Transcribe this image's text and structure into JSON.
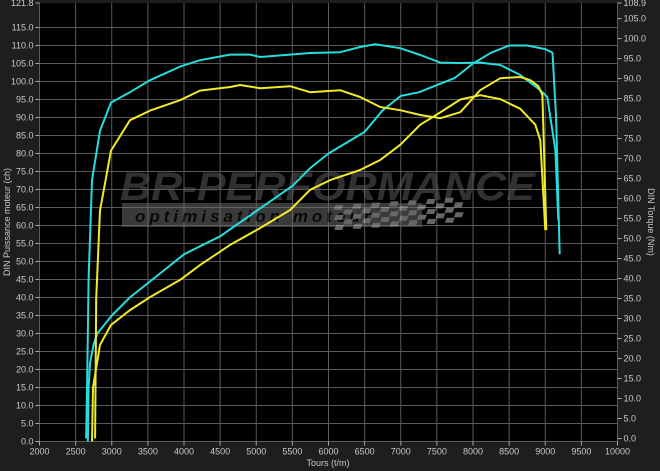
{
  "chart_data": {
    "type": "line",
    "title": "",
    "xlabel": "Tours (t/m)",
    "ylabel_left": "DIN Puissance moteur (ch)",
    "ylabel_right": "DIN Torque (Nm)",
    "xlim": [
      2000,
      10000
    ],
    "ylim_left": [
      0,
      121.8
    ],
    "ylim_right": [
      0,
      108.9
    ],
    "x_ticks": [
      2000,
      2500,
      3000,
      3500,
      4000,
      4500,
      5000,
      5500,
      6000,
      6500,
      7000,
      7500,
      8000,
      8500,
      9000,
      9500,
      10000
    ],
    "y_left_ticks": [
      "0.0",
      "5.0",
      "10.0",
      "15.0",
      "20.0",
      "25.0",
      "30.0",
      "35.0",
      "40.0",
      "45.0",
      "50.0",
      "55.0",
      "60.0",
      "65.0",
      "70.0",
      "75.0",
      "80.0",
      "85.0",
      "90.0",
      "95.0",
      "100.0",
      "105.0",
      "110.0",
      "115.0",
      "121.8"
    ],
    "y_right_ticks": [
      "0.0",
      "5.0",
      "10.0",
      "15.0",
      "20.0",
      "25.0",
      "30.0",
      "35.0",
      "40.0",
      "45.0",
      "50.0",
      "55.0",
      "60.0",
      "65.0",
      "70.0",
      "75.0",
      "80.0",
      "85.0",
      "90.0",
      "95.0",
      "100.0",
      "105.0",
      "108.9"
    ],
    "grid": true,
    "background": "#000000",
    "watermark": {
      "brand": "BR-Performance",
      "tagline": "optimisation moteur"
    },
    "series": [
      {
        "axis": "left",
        "color": "#26dcdc",
        "x": [
          2670,
          2680,
          2700,
          2750,
          2800,
          3000,
          3250,
          3500,
          4000,
          4500,
          5000,
          5500,
          5750,
          6000,
          6500,
          6750,
          7000,
          7250,
          7500,
          7750,
          8000,
          8250,
          8500,
          8750,
          9000,
          9100,
          9150,
          9200
        ],
        "y": [
          0,
          15,
          22,
          27,
          30,
          35,
          40,
          44,
          52,
          57,
          64,
          71,
          76,
          80,
          86,
          92,
          96,
          97,
          99,
          101,
          105,
          108,
          110,
          110,
          109,
          108,
          90,
          52
        ]
      },
      {
        "axis": "right",
        "color": "#26dcdc",
        "x": [
          2645,
          2660,
          2680,
          2727,
          2838,
          2990,
          3253,
          3530,
          3946,
          4222,
          4638,
          4915,
          5054,
          5469,
          5746,
          6161,
          6438,
          6646,
          6993,
          7270,
          7547,
          7824,
          8100,
          8378,
          8655,
          8932,
          9029,
          9140,
          9181
        ],
        "y": [
          0,
          15,
          40,
          64.6,
          77,
          84,
          86.6,
          89.6,
          93,
          94.6,
          96,
          96,
          95.4,
          96,
          96.4,
          96.6,
          97.9,
          98.6,
          97.6,
          95.9,
          94,
          93.9,
          94,
          93.4,
          90.9,
          87.1,
          85.4,
          72,
          54.6
        ]
      },
      {
        "axis": "left",
        "color": "#f0ea2a",
        "x": [
          2727,
          2740,
          2838,
          2990,
          3253,
          3530,
          3946,
          4222,
          4638,
          5054,
          5469,
          5746,
          6023,
          6438,
          6716,
          6993,
          7270,
          7547,
          7824,
          8100,
          8378,
          8655,
          8862,
          8932,
          9000
        ],
        "y": [
          0,
          15,
          26.8,
          32.4,
          36.5,
          40.1,
          44.9,
          49,
          54.6,
          59.3,
          64.3,
          69.9,
          72.6,
          75.4,
          78.2,
          82.4,
          88,
          91.4,
          95,
          96.2,
          95.1,
          92.4,
          88,
          83.7,
          58.7
        ]
      },
      {
        "axis": "right",
        "color": "#f0ea2a",
        "x": [
          2769,
          2785,
          2838,
          2990,
          3253,
          3530,
          3946,
          4222,
          4638,
          4777,
          5054,
          5469,
          5746,
          6161,
          6438,
          6716,
          6993,
          7270,
          7547,
          7824,
          8100,
          8378,
          8655,
          8793,
          8904,
          8960,
          9015
        ],
        "y": [
          0,
          35,
          57,
          72,
          79.6,
          82,
          84.6,
          87,
          87.9,
          88.4,
          87.6,
          88.1,
          86.6,
          87.1,
          85.4,
          82.9,
          82.1,
          80.9,
          80.1,
          81.6,
          87.1,
          90.1,
          90.4,
          89.6,
          88.1,
          85.9,
          52.1
        ]
      }
    ]
  }
}
